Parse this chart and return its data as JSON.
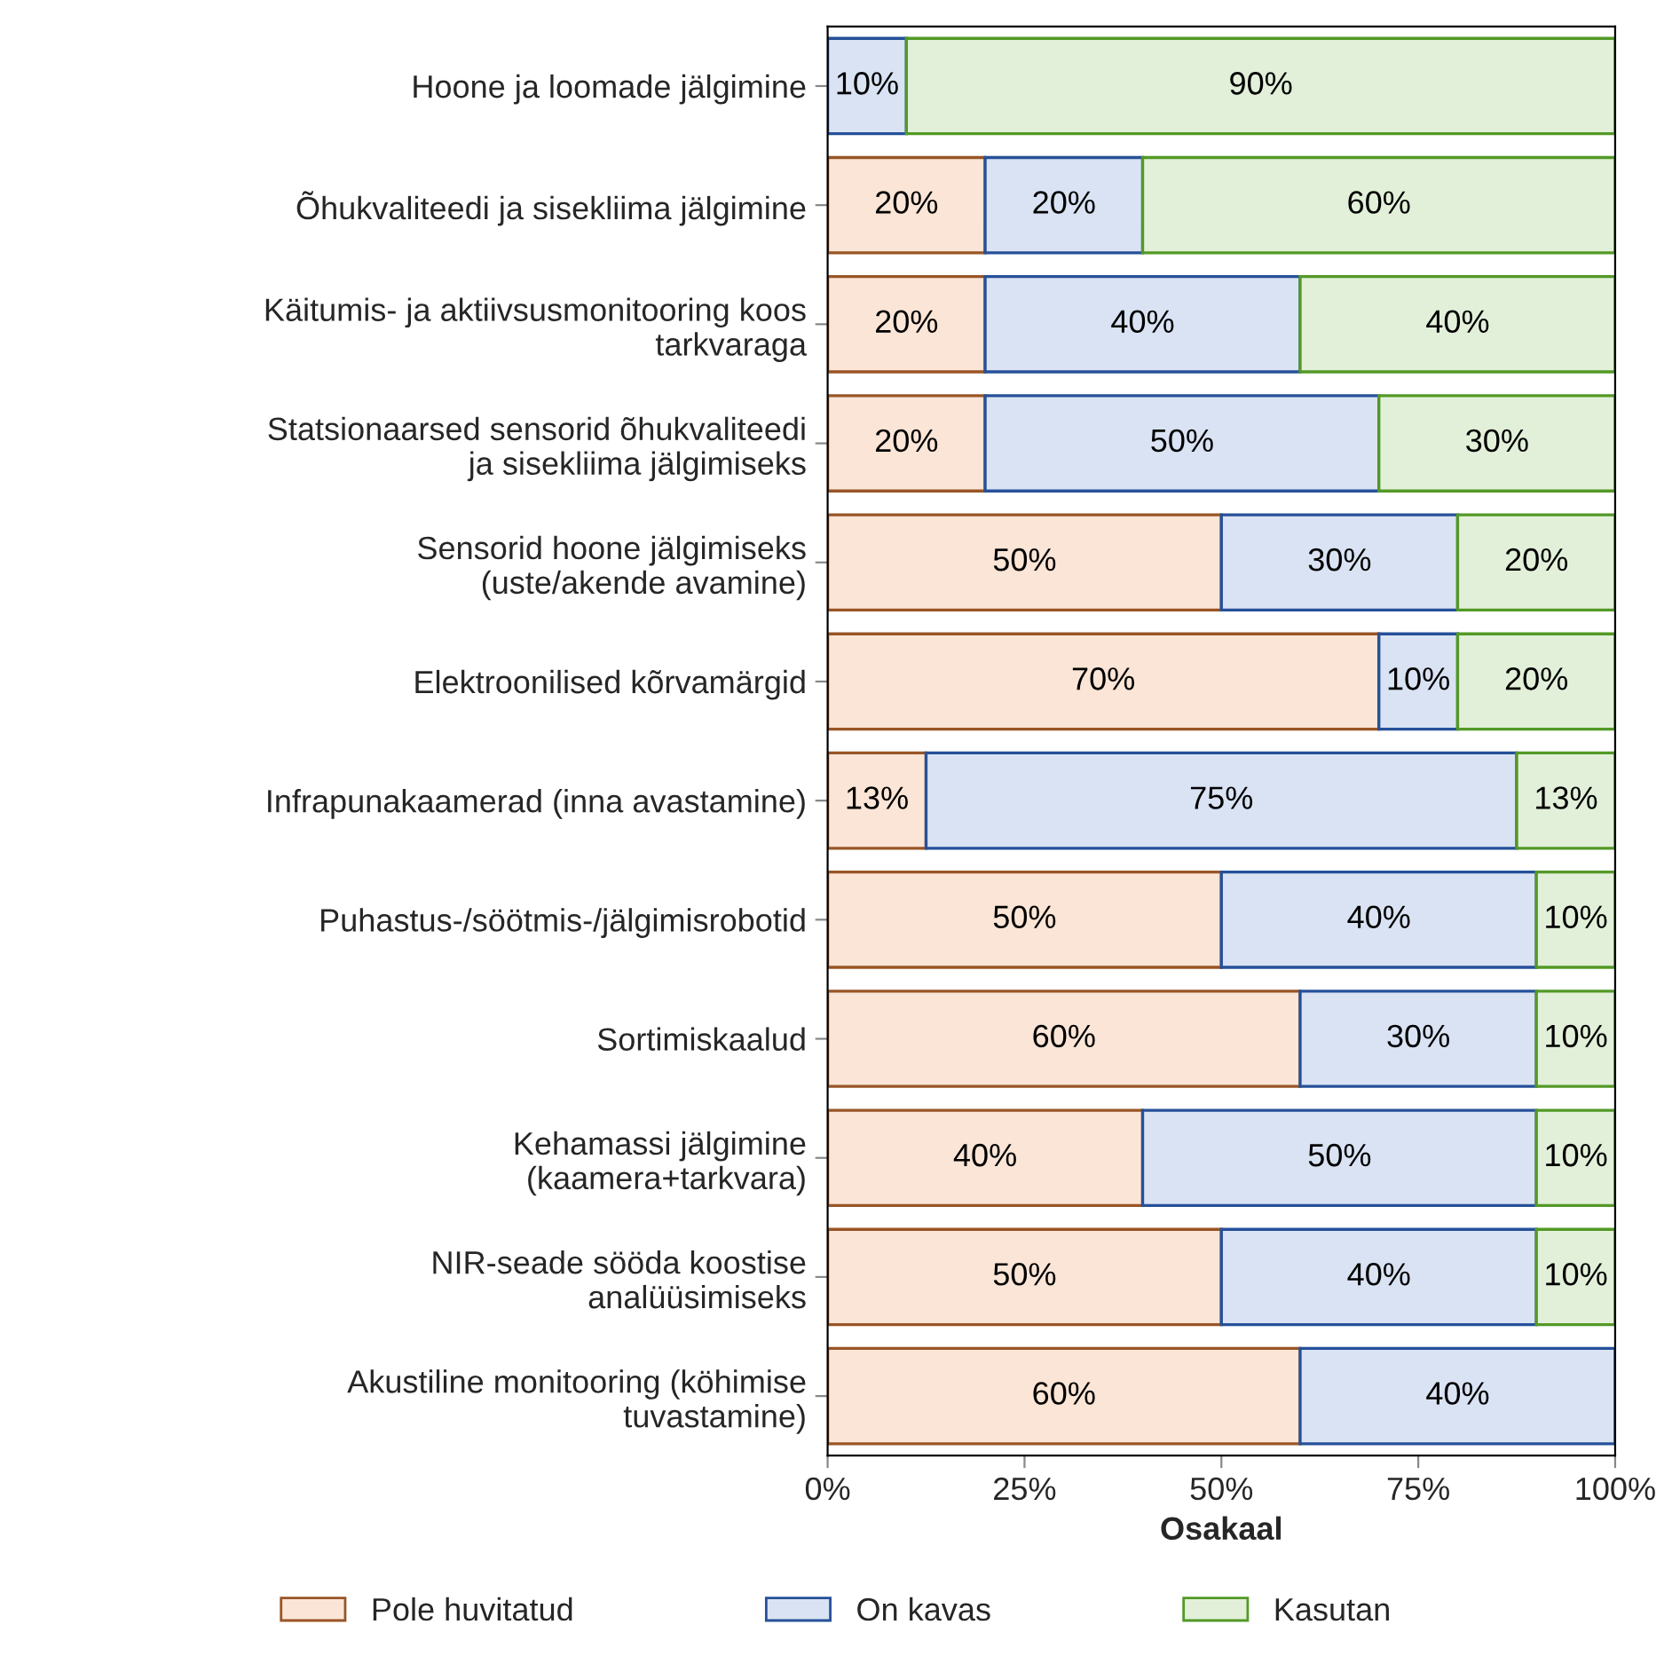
{
  "chart_data": {
    "type": "bar",
    "orientation": "horizontal",
    "stacked": true,
    "xlabel": "Osakaal",
    "categories": [
      "Hoone ja loomade jälgimine",
      "Õhukvaliteedi ja sisekliima jälgimine",
      "Käitumis- ja aktiivsusmonitooring koos\ntarkvaraga",
      "Statsionaarsed sensorid õhukvaliteedi\nja sisekliima jälgimiseks",
      "Sensorid hoone jälgimiseks\n(uste/akende avamine)",
      "Elektroonilised kõrvamärgid",
      "Infrapunakaamerad (inna avastamine)",
      "Puhastus-/söötmis-/jälgimisrobotid",
      "Sortimiskaalud",
      "Kehamassi jälgimine\n(kaamera+tarkvara)",
      "NIR-seade sööda koostise\nanalüüsimiseks",
      "Akustiline monitooring (köhimise\ntuvastamine)"
    ],
    "series": [
      {
        "name": "Pole huvitatud",
        "color": "#fbe5d6",
        "values": [
          0,
          20,
          20,
          20,
          50,
          70,
          12.5,
          50,
          60,
          40,
          50,
          60
        ],
        "value_labels": [
          null,
          "20%",
          "20%",
          "20%",
          "50%",
          "70%",
          "13%",
          "50%",
          "60%",
          "40%",
          "50%",
          "60%"
        ]
      },
      {
        "name": "On kavas",
        "color": "#dae3f3",
        "values": [
          10,
          20,
          40,
          50,
          30,
          10,
          75,
          40,
          30,
          50,
          40,
          40
        ],
        "value_labels": [
          "10%",
          "20%",
          "40%",
          "50%",
          "30%",
          "10%",
          "75%",
          "40%",
          "30%",
          "50%",
          "40%",
          "40%"
        ]
      },
      {
        "name": "Kasutan",
        "color": "#e2f0d9",
        "values": [
          90,
          60,
          40,
          30,
          20,
          20,
          12.5,
          10,
          10,
          10,
          10,
          0
        ],
        "value_labels": [
          "90%",
          "60%",
          "40%",
          "30%",
          "20%",
          "20%",
          "13%",
          "10%",
          "10%",
          "10%",
          "10%",
          null
        ]
      }
    ],
    "xlim": [
      0,
      100
    ],
    "xticks": [
      {
        "value": 0,
        "label": "0%"
      },
      {
        "value": 25,
        "label": "25%"
      },
      {
        "value": 50,
        "label": "50%"
      },
      {
        "value": 75,
        "label": "75%"
      },
      {
        "value": 100,
        "label": "100%"
      }
    ],
    "grid": false,
    "legend": "bottom"
  }
}
